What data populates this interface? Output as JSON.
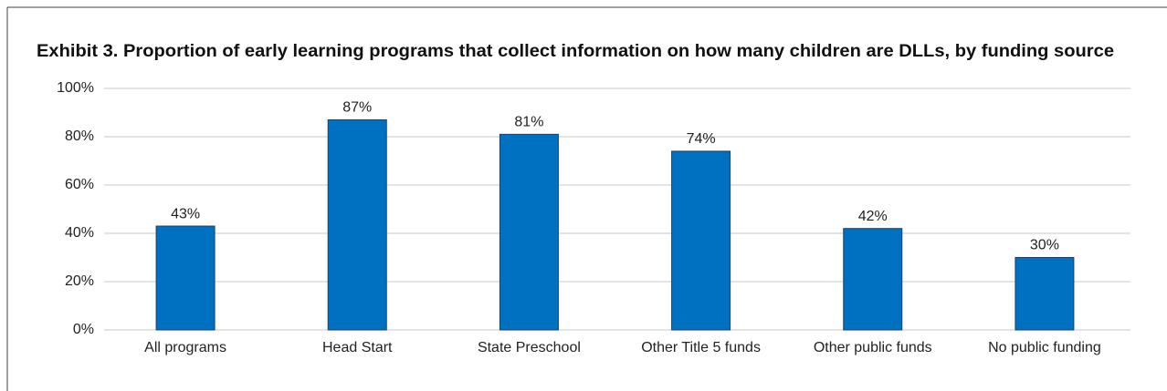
{
  "chart_data": {
    "type": "bar",
    "title": "Exhibit 3. Proportion of early learning programs that collect information on how many children are DLLs, by funding source",
    "categories": [
      "All programs",
      "Head Start",
      "State Preschool",
      "Other Title 5 funds",
      "Other public funds",
      "No public funding"
    ],
    "values": [
      43,
      87,
      81,
      74,
      42,
      30
    ],
    "value_labels": [
      "43%",
      "87%",
      "81%",
      "74%",
      "42%",
      "30%"
    ],
    "color": "#0070c0",
    "ylim": [
      0,
      100
    ],
    "yticks": [
      {
        "value": 0,
        "label": "0%"
      },
      {
        "value": 20,
        "label": "20%"
      },
      {
        "value": 40,
        "label": "40%"
      },
      {
        "value": 60,
        "label": "60%"
      },
      {
        "value": 80,
        "label": "80%"
      },
      {
        "value": 100,
        "label": "100%"
      }
    ],
    "grid": true
  }
}
